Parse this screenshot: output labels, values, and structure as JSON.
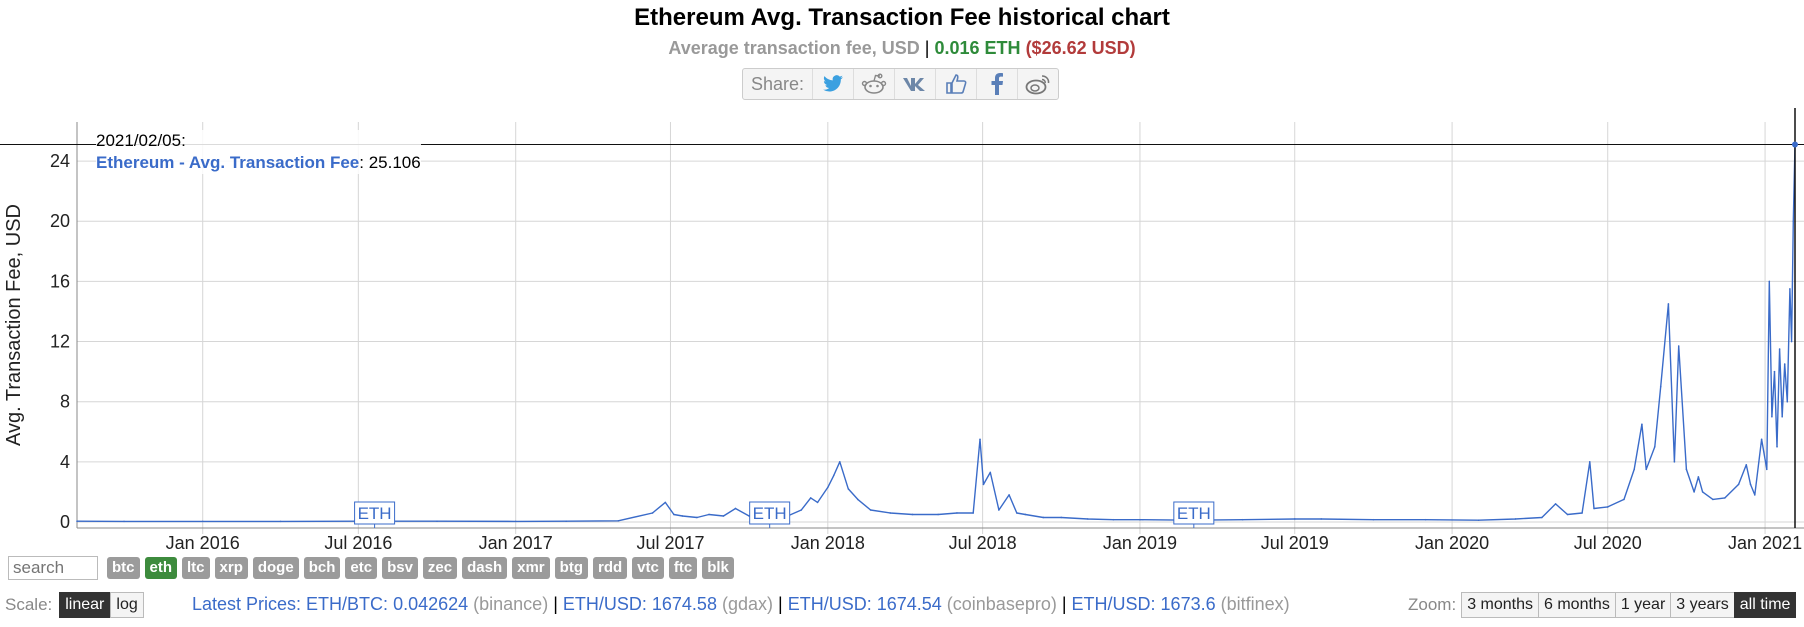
{
  "header": {
    "title": "Ethereum Avg. Transaction Fee historical chart",
    "subtitle_label": "Average transaction fee, USD",
    "subtitle_sep": "|",
    "subtitle_eth": "0.016 ETH",
    "subtitle_usd": "($26.62 USD)"
  },
  "share": {
    "label": "Share:",
    "icons": [
      "twitter-icon",
      "reddit-icon",
      "vk-icon",
      "like-icon",
      "facebook-icon",
      "weibo-icon"
    ]
  },
  "tooltip": {
    "date": "2021/02/05:",
    "series_name": "Ethereum - Avg. Transaction Fee",
    "value_text": ": 25.106"
  },
  "chart_data": {
    "type": "line",
    "title": "",
    "xlabel": "",
    "ylabel": "Avg. Transaction Fee, USD",
    "ylim": [
      -0.4,
      26.6
    ],
    "xlim": [
      "2015-08-07",
      "2021-02-05"
    ],
    "yticks": [
      "0",
      "4",
      "8",
      "12",
      "16",
      "20",
      "24"
    ],
    "xticks": [
      {
        "label": "Jan 2016",
        "date": "2016-01-01"
      },
      {
        "label": "Jul 2016",
        "date": "2016-07-01"
      },
      {
        "label": "Jan 2017",
        "date": "2017-01-01"
      },
      {
        "label": "Jul 2017",
        "date": "2017-07-01"
      },
      {
        "label": "Jan 2018",
        "date": "2018-01-01"
      },
      {
        "label": "Jul 2018",
        "date": "2018-07-01"
      },
      {
        "label": "Jan 2019",
        "date": "2019-01-01"
      },
      {
        "label": "Jul 2019",
        "date": "2019-07-01"
      },
      {
        "label": "Jan 2020",
        "date": "2020-01-01"
      },
      {
        "label": "Jul 2020",
        "date": "2020-07-01"
      },
      {
        "label": "Jan 2021",
        "date": "2021-01-01"
      }
    ],
    "grid": true,
    "color": "#3a6bc9",
    "series": [
      {
        "name": "Ethereum - Avg. Transaction Fee",
        "x": [
          "2015-08-07",
          "2015-10-01",
          "2016-01-01",
          "2016-04-01",
          "2016-07-01",
          "2016-10-01",
          "2017-01-01",
          "2017-03-01",
          "2017-05-01",
          "2017-06-10",
          "2017-06-25",
          "2017-07-05",
          "2017-07-15",
          "2017-08-01",
          "2017-08-15",
          "2017-09-01",
          "2017-09-15",
          "2017-10-01",
          "2017-10-15",
          "2017-11-01",
          "2017-11-15",
          "2017-12-01",
          "2017-12-12",
          "2017-12-20",
          "2018-01-01",
          "2018-01-08",
          "2018-01-15",
          "2018-01-25",
          "2018-02-05",
          "2018-02-20",
          "2018-03-15",
          "2018-04-10",
          "2018-05-10",
          "2018-06-01",
          "2018-06-20",
          "2018-06-28",
          "2018-07-02",
          "2018-07-10",
          "2018-07-20",
          "2018-08-01",
          "2018-08-10",
          "2018-08-20",
          "2018-09-10",
          "2018-10-01",
          "2018-11-01",
          "2018-12-01",
          "2019-01-01",
          "2019-03-01",
          "2019-05-01",
          "2019-07-01",
          "2019-08-01",
          "2019-10-01",
          "2019-12-01",
          "2020-02-01",
          "2020-03-15",
          "2020-04-15",
          "2020-05-01",
          "2020-05-15",
          "2020-06-01",
          "2020-06-10",
          "2020-06-15",
          "2020-07-01",
          "2020-07-20",
          "2020-08-01",
          "2020-08-10",
          "2020-08-15",
          "2020-08-25",
          "2020-09-01",
          "2020-09-10",
          "2020-09-17",
          "2020-09-22",
          "2020-10-01",
          "2020-10-10",
          "2020-10-15",
          "2020-10-20",
          "2020-11-01",
          "2020-11-15",
          "2020-12-01",
          "2020-12-10",
          "2020-12-15",
          "2020-12-20",
          "2020-12-28",
          "2021-01-03",
          "2021-01-06",
          "2021-01-09",
          "2021-01-12",
          "2021-01-15",
          "2021-01-18",
          "2021-01-21",
          "2021-01-24",
          "2021-01-27",
          "2021-01-30",
          "2021-02-01",
          "2021-02-03",
          "2021-02-05"
        ],
        "y": [
          0.05,
          0.04,
          0.04,
          0.04,
          0.05,
          0.05,
          0.04,
          0.05,
          0.08,
          0.6,
          1.3,
          0.5,
          0.4,
          0.3,
          0.5,
          0.4,
          0.9,
          0.4,
          0.5,
          0.6,
          0.4,
          0.8,
          1.6,
          1.3,
          2.3,
          3.1,
          4.0,
          2.2,
          1.5,
          0.8,
          0.6,
          0.5,
          0.5,
          0.6,
          0.6,
          5.5,
          2.5,
          3.3,
          0.8,
          1.8,
          0.6,
          0.5,
          0.3,
          0.3,
          0.2,
          0.15,
          0.15,
          0.12,
          0.15,
          0.2,
          0.2,
          0.15,
          0.15,
          0.12,
          0.2,
          0.3,
          1.2,
          0.5,
          0.6,
          4.0,
          0.9,
          1.0,
          1.5,
          3.5,
          6.5,
          3.5,
          5.0,
          9.0,
          14.5,
          4.0,
          11.7,
          3.5,
          2.0,
          3.0,
          2.0,
          1.5,
          1.6,
          2.5,
          3.8,
          2.5,
          1.8,
          5.5,
          3.5,
          16.0,
          7.0,
          10.0,
          5.0,
          11.5,
          7.0,
          10.5,
          8.0,
          15.5,
          12.0,
          20.0,
          25.1
        ]
      }
    ]
  },
  "markers": [
    {
      "label": "ETH",
      "date": "2016-07-20"
    },
    {
      "label": "ETH",
      "date": "2017-10-25"
    },
    {
      "label": "ETH",
      "date": "2019-03-05"
    }
  ],
  "search": {
    "placeholder": "search"
  },
  "coins": [
    {
      "label": "btc",
      "active": false
    },
    {
      "label": "eth",
      "active": true
    },
    {
      "label": "ltc",
      "active": false
    },
    {
      "label": "xrp",
      "active": false
    },
    {
      "label": "doge",
      "active": false
    },
    {
      "label": "bch",
      "active": false
    },
    {
      "label": "etc",
      "active": false
    },
    {
      "label": "bsv",
      "active": false
    },
    {
      "label": "zec",
      "active": false
    },
    {
      "label": "dash",
      "active": false
    },
    {
      "label": "xmr",
      "active": false
    },
    {
      "label": "btg",
      "active": false
    },
    {
      "label": "rdd",
      "active": false
    },
    {
      "label": "vtc",
      "active": false
    },
    {
      "label": "ftc",
      "active": false
    },
    {
      "label": "blk",
      "active": false
    }
  ],
  "scale": {
    "label": "Scale:",
    "linear": "linear",
    "log": "log"
  },
  "prices": {
    "label": "Latest Prices:",
    "items": [
      {
        "pair": "ETH/BTC:",
        "value": "0.042624",
        "source": "(binance)"
      },
      {
        "pair": "ETH/USD:",
        "value": "1674.58",
        "source": "(gdax)"
      },
      {
        "pair": "ETH/USD:",
        "value": "1674.54",
        "source": "(coinbasepro)"
      },
      {
        "pair": "ETH/USD:",
        "value": "1673.6",
        "source": "(bitfinex)"
      }
    ]
  },
  "zoom": {
    "label": "Zoom:",
    "options": [
      {
        "label": "3 months",
        "active": false
      },
      {
        "label": "6 months",
        "active": false
      },
      {
        "label": "1 year",
        "active": false
      },
      {
        "label": "3 years",
        "active": false
      },
      {
        "label": "all time",
        "active": true
      }
    ]
  }
}
